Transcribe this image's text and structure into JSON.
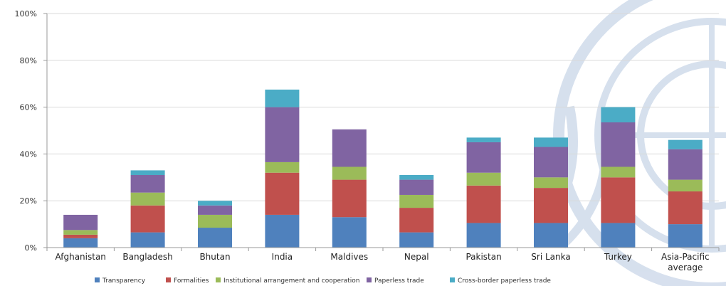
{
  "chart_data": {
    "type": "bar",
    "stacked": true,
    "categories": [
      "Afghanistan",
      "Bangladesh",
      "Bhutan",
      "India",
      "Maldives",
      "Nepal",
      "Pakistan",
      "Sri Lanka",
      "Turkey",
      "Asia-Pacific average"
    ],
    "category_lines": [
      [
        "Afghanistan"
      ],
      [
        "Bangladesh"
      ],
      [
        "Bhutan"
      ],
      [
        "India"
      ],
      [
        "Maldives"
      ],
      [
        "Nepal"
      ],
      [
        "Pakistan"
      ],
      [
        "Sri Lanka"
      ],
      [
        "Turkey"
      ],
      [
        "Asia-Pacific",
        "average"
      ]
    ],
    "series": [
      {
        "name": "Transparency",
        "color": "#4f81bd",
        "values": [
          4,
          6.5,
          8.5,
          14,
          13,
          6.5,
          10.5,
          10.5,
          10.5,
          10
        ]
      },
      {
        "name": "Formalities",
        "color": "#c0504d",
        "values": [
          1.5,
          11.5,
          0,
          18,
          16,
          10.5,
          16,
          15,
          19.5,
          14
        ]
      },
      {
        "name": "Institutional arrangement and cooperation",
        "color": "#9bbb59",
        "values": [
          2,
          5.5,
          5.5,
          4.5,
          5.5,
          5.5,
          5.5,
          4.5,
          4.5,
          5
        ]
      },
      {
        "name": "Paperless trade",
        "color": "#8064a2",
        "values": [
          6.5,
          7.5,
          4,
          23.5,
          16,
          6.5,
          13,
          13,
          19,
          13
        ]
      },
      {
        "name": "Cross-border paperless trade",
        "color": "#4bacc6",
        "values": [
          0,
          2,
          2,
          7.5,
          0,
          2,
          2,
          4,
          6.5,
          4
        ]
      }
    ],
    "yticks": [
      "0%",
      "20%",
      "40%",
      "60%",
      "80%",
      "100%"
    ],
    "ylim": [
      0,
      100
    ],
    "grid": true,
    "legend_position": "bottom",
    "title": "",
    "xlabel": "",
    "ylabel": ""
  }
}
